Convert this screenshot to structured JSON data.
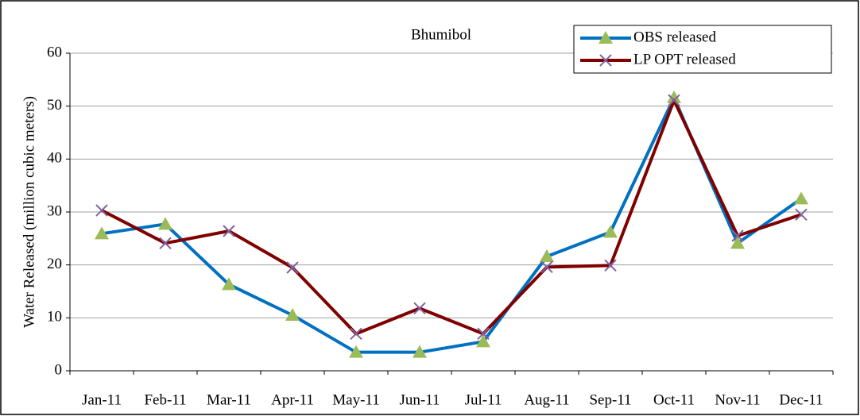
{
  "chart_data": {
    "type": "line",
    "title": "Bhumibol",
    "ylabel": "Water Released (million cubic meters)",
    "categories": [
      "Jan-11",
      "Feb-11",
      "Mar-11",
      "Apr-11",
      "May-11",
      "Jun-11",
      "Jul-11",
      "Aug-11",
      "Sep-11",
      "Oct-11",
      "Nov-11",
      "Dec-11"
    ],
    "series": [
      {
        "name": "OBS released",
        "color": "#0070c0",
        "marker": "triangle",
        "marker_color": "#9bbb59",
        "values": [
          25.9,
          27.7,
          16.3,
          10.5,
          3.5,
          3.5,
          5.5,
          21.6,
          26.2,
          51.6,
          24.1,
          32.5
        ]
      },
      {
        "name": "LP OPT released",
        "color": "#800000",
        "marker": "x",
        "marker_color": "#8064a2",
        "values": [
          30.3,
          24.1,
          26.4,
          19.5,
          7.0,
          11.8,
          7.0,
          19.6,
          19.9,
          51.1,
          25.5,
          29.5
        ]
      }
    ],
    "ylim": [
      0,
      60
    ],
    "yticks": [
      0,
      10,
      20,
      30,
      40,
      50,
      60
    ],
    "grid": true,
    "legend": "upper right"
  }
}
